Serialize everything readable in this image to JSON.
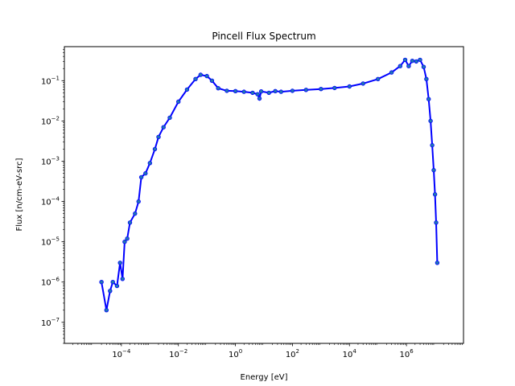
{
  "chart_data": {
    "type": "line",
    "title": "Pincell Flux Spectrum",
    "xlabel": "Energy [eV]",
    "ylabel": "Flux [n/cm-eV-src]",
    "xscale": "log",
    "yscale": "log",
    "xlim": [
      1e-06,
      100000000.0
    ],
    "ylim": [
      3e-08,
      0.7
    ],
    "x_ticks": [
      {
        "value": 0.0001,
        "base": "10",
        "exp": "−4"
      },
      {
        "value": 0.01,
        "base": "10",
        "exp": "−2"
      },
      {
        "value": 1,
        "base": "10",
        "exp": "0"
      },
      {
        "value": 100.0,
        "base": "10",
        "exp": "2"
      },
      {
        "value": 10000.0,
        "base": "10",
        "exp": "4"
      },
      {
        "value": 1000000.0,
        "base": "10",
        "exp": "6"
      }
    ],
    "y_ticks": [
      {
        "value": 1e-07,
        "base": "10",
        "exp": "−7"
      },
      {
        "value": 1e-06,
        "base": "10",
        "exp": "−6"
      },
      {
        "value": 1e-05,
        "base": "10",
        "exp": "−5"
      },
      {
        "value": 0.0001,
        "base": "10",
        "exp": "−4"
      },
      {
        "value": 0.001,
        "base": "10",
        "exp": "−3"
      },
      {
        "value": 0.01,
        "base": "10",
        "exp": "−2"
      },
      {
        "value": 0.1,
        "base": "10",
        "exp": "−1"
      }
    ],
    "grid": false,
    "legend": "none",
    "series": [
      {
        "color": "#0000ff",
        "marker_color": "#1f77b4",
        "points": [
          {
            "x": 2e-05,
            "y": 1e-06
          },
          {
            "x": 3e-05,
            "y": 2e-07
          },
          {
            "x": 4e-05,
            "y": 6e-07
          },
          {
            "x": 5e-05,
            "y": 1e-06
          },
          {
            "x": 7e-05,
            "y": 8e-07
          },
          {
            "x": 9e-05,
            "y": 3e-06
          },
          {
            "x": 0.00011,
            "y": 1.2e-06
          },
          {
            "x": 0.00013,
            "y": 1e-05
          },
          {
            "x": 0.00016,
            "y": 1.2e-05
          },
          {
            "x": 0.0002,
            "y": 3e-05
          },
          {
            "x": 0.0003,
            "y": 5e-05
          },
          {
            "x": 0.0004,
            "y": 0.0001
          },
          {
            "x": 0.0005,
            "y": 0.0004
          },
          {
            "x": 0.0007,
            "y": 0.0005
          },
          {
            "x": 0.001,
            "y": 0.0009
          },
          {
            "x": 0.0015,
            "y": 0.002
          },
          {
            "x": 0.002,
            "y": 0.004
          },
          {
            "x": 0.003,
            "y": 0.007
          },
          {
            "x": 0.005,
            "y": 0.012
          },
          {
            "x": 0.01,
            "y": 0.03
          },
          {
            "x": 0.02,
            "y": 0.06
          },
          {
            "x": 0.04,
            "y": 0.11
          },
          {
            "x": 0.06,
            "y": 0.14
          },
          {
            "x": 0.1,
            "y": 0.13
          },
          {
            "x": 0.15,
            "y": 0.1
          },
          {
            "x": 0.25,
            "y": 0.065
          },
          {
            "x": 0.5,
            "y": 0.056
          },
          {
            "x": 1,
            "y": 0.055
          },
          {
            "x": 2,
            "y": 0.053
          },
          {
            "x": 4,
            "y": 0.05
          },
          {
            "x": 6,
            "y": 0.046
          },
          {
            "x": 7,
            "y": 0.036
          },
          {
            "x": 8,
            "y": 0.054
          },
          {
            "x": 15,
            "y": 0.05
          },
          {
            "x": 25,
            "y": 0.055
          },
          {
            "x": 40,
            "y": 0.053
          },
          {
            "x": 100,
            "y": 0.056
          },
          {
            "x": 300,
            "y": 0.059
          },
          {
            "x": 1000,
            "y": 0.062
          },
          {
            "x": 3000,
            "y": 0.066
          },
          {
            "x": 10000.0,
            "y": 0.072
          },
          {
            "x": 30000.0,
            "y": 0.085
          },
          {
            "x": 100000.0,
            "y": 0.11
          },
          {
            "x": 300000.0,
            "y": 0.16
          },
          {
            "x": 600000.0,
            "y": 0.23
          },
          {
            "x": 900000.0,
            "y": 0.33
          },
          {
            "x": 1200000.0,
            "y": 0.23
          },
          {
            "x": 1600000.0,
            "y": 0.31
          },
          {
            "x": 2200000.0,
            "y": 0.3
          },
          {
            "x": 3000000.0,
            "y": 0.33
          },
          {
            "x": 4000000.0,
            "y": 0.22
          },
          {
            "x": 5000000.0,
            "y": 0.11
          },
          {
            "x": 6000000.0,
            "y": 0.035
          },
          {
            "x": 7000000.0,
            "y": 0.01
          },
          {
            "x": 8000000.0,
            "y": 0.0025
          },
          {
            "x": 9000000.0,
            "y": 0.0006
          },
          {
            "x": 10000000.0,
            "y": 0.00015
          },
          {
            "x": 11000000.0,
            "y": 3e-05
          },
          {
            "x": 12000000.0,
            "y": 3e-06
          }
        ]
      }
    ]
  }
}
